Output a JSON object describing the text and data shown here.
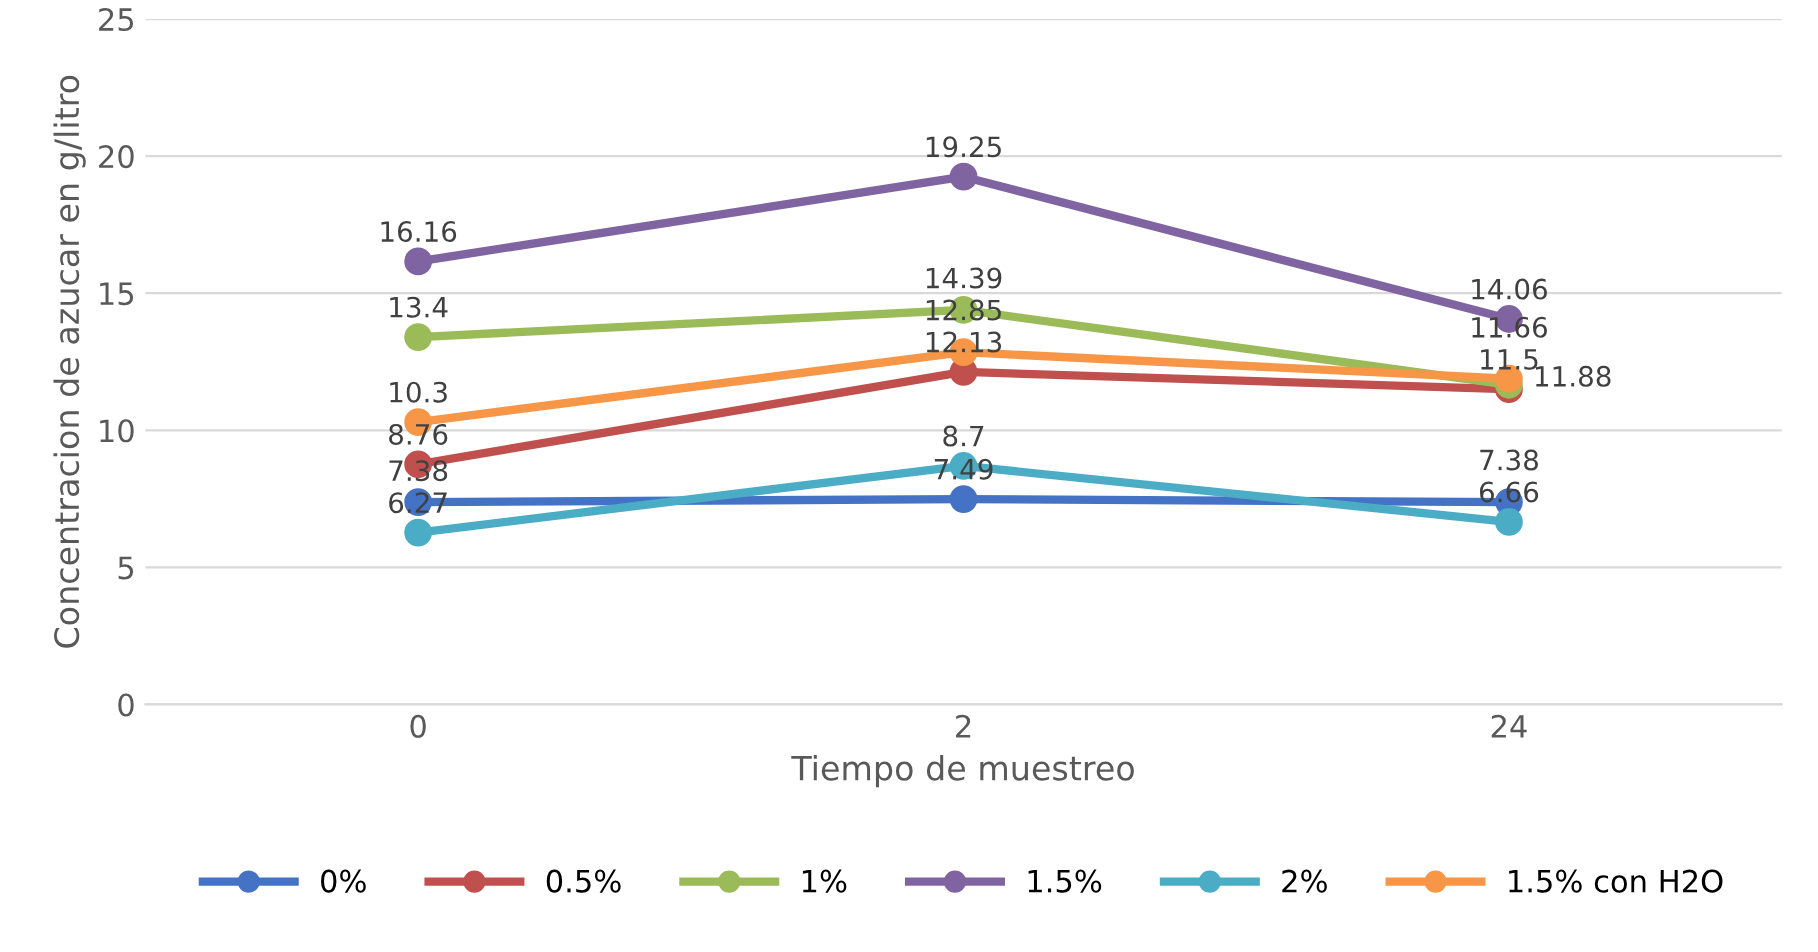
{
  "chart_data": {
    "type": "line",
    "xlabel": "Tiempo de muestreo",
    "ylabel": "Concentracion de azucar en g/litro",
    "categories": [
      "0",
      "2",
      "24"
    ],
    "ylim": [
      0,
      25
    ],
    "yticks": [
      0,
      5,
      10,
      15,
      20,
      25
    ],
    "grid": "y",
    "legend": "bottom",
    "marker": "circle",
    "line_style": "solid",
    "data_labels": true,
    "series": [
      {
        "name": "0%",
        "color": "#4472c4",
        "values": [
          7.38,
          7.49,
          7.38
        ]
      },
      {
        "name": "0.5%",
        "color": "#c0504d",
        "values": [
          8.76,
          12.13,
          11.5
        ]
      },
      {
        "name": "1%",
        "color": "#9bbb59",
        "values": [
          13.4,
          14.39,
          11.66
        ]
      },
      {
        "name": "1.5%",
        "color": "#8064a2",
        "values": [
          16.16,
          19.25,
          14.06
        ]
      },
      {
        "name": "2%",
        "color": "#4bacc6",
        "values": [
          6.27,
          8.7,
          6.66
        ]
      },
      {
        "name": "1.5% con H2O",
        "color": "#f79646",
        "values": [
          10.3,
          12.85,
          11.88
        ]
      }
    ]
  }
}
